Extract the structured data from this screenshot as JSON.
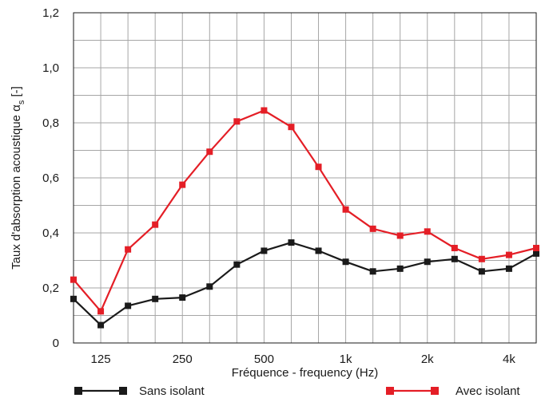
{
  "chart_data": {
    "type": "line",
    "xlabel": "Fréquence - frequency (Hz)",
    "ylabel": "Taux d'absorption acoustique α",
    "ylabel_sub": "s",
    "ylabel_unit": " [-]",
    "ylim": [
      0,
      1.2
    ],
    "y_ticks": [
      "0",
      "0,2",
      "0,4",
      "0,6",
      "0,8",
      "1,0",
      "1,2"
    ],
    "x_ticks": [
      {
        "index": 1,
        "label": "125"
      },
      {
        "index": 4,
        "label": "250"
      },
      {
        "index": 7,
        "label": "500"
      },
      {
        "index": 10,
        "label": "1k"
      },
      {
        "index": 13,
        "label": "2k"
      },
      {
        "index": 16,
        "label": "4k"
      }
    ],
    "x_freq_hz": [
      100,
      125,
      160,
      200,
      250,
      315,
      400,
      500,
      630,
      800,
      1000,
      1250,
      1600,
      2000,
      2500,
      3150,
      4000,
      5000
    ],
    "grid": true,
    "series": [
      {
        "name": "Sans isolant",
        "color": "#1a1a1a",
        "values": [
          0.16,
          0.065,
          0.135,
          0.16,
          0.165,
          0.205,
          0.285,
          0.335,
          0.365,
          0.335,
          0.295,
          0.26,
          0.27,
          0.295,
          0.305,
          0.26,
          0.27,
          0.325
        ]
      },
      {
        "name": "Avec isolant",
        "color": "#e41e26",
        "values": [
          0.23,
          0.115,
          0.34,
          0.43,
          0.575,
          0.695,
          0.805,
          0.845,
          0.785,
          0.64,
          0.485,
          0.415,
          0.39,
          0.405,
          0.345,
          0.305,
          0.32,
          0.345
        ]
      }
    ]
  }
}
